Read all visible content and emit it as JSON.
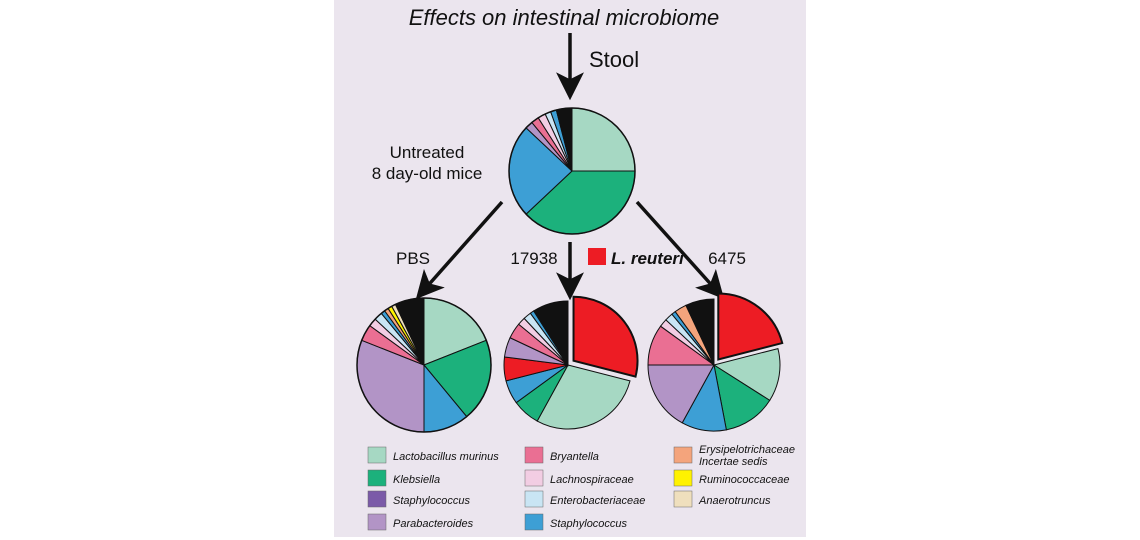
{
  "figure": {
    "title": "Effects on intestinal microbiome",
    "stool_label": "Stool",
    "untreated_label_line1": "Untreated",
    "untreated_label_line2": "8 day-old mice",
    "treatment_pbs": "PBS",
    "treatment_strain1": "17938",
    "treatment_strain2": "6475",
    "lreuteri_label": "L. reuteri"
  },
  "colors": {
    "lactobacillus_murinus": "#a6d8c3",
    "klebsiella": "#1cb17c",
    "staphylococcus": "#7b5aa8",
    "parabacteroides": "#b294c6",
    "bryantella": "#ea6f93",
    "lachnospiraceae": "#f2cde3",
    "enterobacteriaceae": "#c9e5f4",
    "staphylococcus_blue": "#3d9fd5",
    "erysipelotrichaceae": "#f4a47c",
    "ruminococcaceae": "#fff200",
    "anaerotruncus": "#efdfbd",
    "lreuteri": "#ed1c24",
    "minor": "#111111",
    "panel_bg": "#ebe5ee"
  },
  "legend": [
    {
      "label": "Lactobacillus murinus",
      "color": "#a6d8c3"
    },
    {
      "label": "Klebsiella",
      "color": "#1cb17c"
    },
    {
      "label": "Staphylococcus",
      "color": "#7b5aa8"
    },
    {
      "label": "Parabacteroides",
      "color": "#b294c6"
    },
    {
      "label": "Bryantella",
      "color": "#ea6f93"
    },
    {
      "label": "Lachnospiraceae",
      "color": "#f2cde3"
    },
    {
      "label": "Enterobacteriaceae",
      "color": "#c9e5f4"
    },
    {
      "label": "Staphylococcus",
      "color": "#3d9fd5"
    },
    {
      "label": "Erysipelotrichaceae\nIncertae sedis",
      "color": "#f4a47c"
    },
    {
      "label": "Ruminococcaceae",
      "color": "#fff200"
    },
    {
      "label": "Anaerotruncus",
      "color": "#efdfbd"
    }
  ],
  "chart_data": [
    {
      "type": "pie",
      "group": "Untreated",
      "slices": [
        {
          "label": "Lactobacillus murinus",
          "value": 25
        },
        {
          "label": "Klebsiella",
          "value": 38
        },
        {
          "label": "Staphylococcus",
          "value": 24
        },
        {
          "label": "Parabacteroides",
          "value": 2
        },
        {
          "label": "Bryantella",
          "value": 2
        },
        {
          "label": "Lachnospiraceae",
          "value": 2
        },
        {
          "label": "Enterobacteriaceae",
          "value": 1.5
        },
        {
          "label": "Staphylococcus",
          "value": 1.5
        },
        {
          "label": "other",
          "value": 4
        }
      ]
    },
    {
      "type": "pie",
      "group": "PBS",
      "slices": [
        {
          "label": "Lactobacillus murinus",
          "value": 19
        },
        {
          "label": "Klebsiella",
          "value": 20
        },
        {
          "label": "Staphylococcus",
          "value": 11
        },
        {
          "label": "Parabacteroides",
          "value": 31
        },
        {
          "label": "Bryantella",
          "value": 4
        },
        {
          "label": "Lachnospiraceae",
          "value": 2
        },
        {
          "label": "Enterobacteriaceae",
          "value": 2
        },
        {
          "label": "Staphylococcus",
          "value": 1
        },
        {
          "label": "Erysipelotrichaceae Incertae sedis",
          "value": 1
        },
        {
          "label": "Ruminococcaceae",
          "value": 1
        },
        {
          "label": "Anaerotruncus",
          "value": 1
        },
        {
          "label": "other",
          "value": 7
        }
      ]
    },
    {
      "type": "pie",
      "group": "17938",
      "slices": [
        {
          "label": "L. reuteri",
          "value": 29
        },
        {
          "label": "Lactobacillus murinus",
          "value": 29
        },
        {
          "label": "Klebsiella",
          "value": 7
        },
        {
          "label": "Staphylococcus",
          "value": 6
        },
        {
          "label": "L. reuteri",
          "value": 6
        },
        {
          "label": "Parabacteroides",
          "value": 5
        },
        {
          "label": "Bryantella",
          "value": 4
        },
        {
          "label": "Lachnospiraceae",
          "value": 2
        },
        {
          "label": "Enterobacteriaceae",
          "value": 2
        },
        {
          "label": "Staphylococcus",
          "value": 1
        },
        {
          "label": "other",
          "value": 9
        }
      ]
    },
    {
      "type": "pie",
      "group": "6475",
      "slices": [
        {
          "label": "L. reuteri",
          "value": 21
        },
        {
          "label": "Lactobacillus murinus",
          "value": 13
        },
        {
          "label": "Klebsiella",
          "value": 13
        },
        {
          "label": "Staphylococcus",
          "value": 11
        },
        {
          "label": "Parabacteroides",
          "value": 17
        },
        {
          "label": "Bryantella",
          "value": 10
        },
        {
          "label": "Lachnospiraceae",
          "value": 2
        },
        {
          "label": "Enterobacteriaceae",
          "value": 2
        },
        {
          "label": "Staphylococcus",
          "value": 1
        },
        {
          "label": "Erysipelotrichaceae Incertae sedis",
          "value": 3
        },
        {
          "label": "other",
          "value": 7
        }
      ]
    }
  ]
}
